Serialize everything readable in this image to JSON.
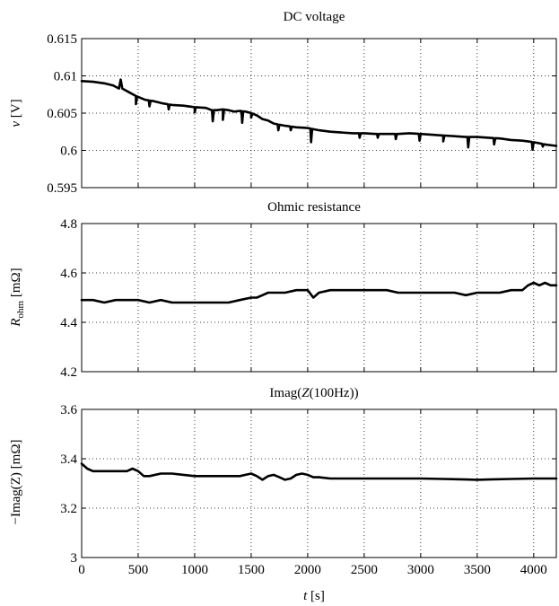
{
  "chart_data": [
    {
      "type": "line",
      "title": "DC voltage",
      "ylabel_main": "v",
      "ylabel_unit": " [V]",
      "xlim": [
        0,
        4200
      ],
      "ylim": [
        0.595,
        0.615
      ],
      "xticks": [
        0,
        500,
        1000,
        1500,
        2000,
        2500,
        3000,
        3500,
        4000
      ],
      "yticks": [
        0.595,
        0.6,
        0.605,
        0.61,
        0.615
      ],
      "ytick_labels": [
        "0.595",
        "0.6",
        "0.605",
        "0.61",
        "0.615"
      ],
      "grid": true,
      "series": [
        {
          "x": [
            0,
            100,
            200,
            280,
            330,
            345,
            360,
            420,
            480,
            560,
            640,
            720,
            800,
            900,
            1000,
            1100,
            1150,
            1200,
            1250,
            1300,
            1350,
            1400,
            1450,
            1500,
            1550,
            1600,
            1650,
            1700,
            1800,
            1900,
            2000,
            2100,
            2200,
            2300,
            2400,
            2500,
            2600,
            2700,
            2800,
            2900,
            3000,
            3100,
            3200,
            3300,
            3400,
            3500,
            3600,
            3700,
            3800,
            3900,
            4000,
            4100,
            4200
          ],
          "y": [
            0.6093,
            0.6092,
            0.609,
            0.6087,
            0.6083,
            0.6095,
            0.6083,
            0.6078,
            0.6073,
            0.6068,
            0.6066,
            0.6063,
            0.6061,
            0.606,
            0.6058,
            0.6057,
            0.6054,
            0.6054,
            0.6055,
            0.6054,
            0.6052,
            0.6053,
            0.6052,
            0.605,
            0.6047,
            0.6042,
            0.604,
            0.6036,
            0.6033,
            0.6031,
            0.603,
            0.6027,
            0.6025,
            0.6024,
            0.6023,
            0.6023,
            0.6022,
            0.6022,
            0.6022,
            0.6023,
            0.6022,
            0.6021,
            0.602,
            0.6019,
            0.6018,
            0.6018,
            0.6017,
            0.6016,
            0.6014,
            0.6013,
            0.6011,
            0.6008,
            0.6006
          ],
          "spikes": [
            {
              "x": 480,
              "y": 0.6062
            },
            {
              "x": 600,
              "y": 0.6059
            },
            {
              "x": 770,
              "y": 0.6055
            },
            {
              "x": 1000,
              "y": 0.6051
            },
            {
              "x": 1160,
              "y": 0.6039
            },
            {
              "x": 1250,
              "y": 0.6041
            },
            {
              "x": 1420,
              "y": 0.6037
            },
            {
              "x": 1500,
              "y": 0.6044
            },
            {
              "x": 1740,
              "y": 0.6027
            },
            {
              "x": 1850,
              "y": 0.6027
            },
            {
              "x": 2030,
              "y": 0.6011
            },
            {
              "x": 2460,
              "y": 0.6017
            },
            {
              "x": 2620,
              "y": 0.6017
            },
            {
              "x": 2780,
              "y": 0.6015
            },
            {
              "x": 2990,
              "y": 0.6013
            },
            {
              "x": 3200,
              "y": 0.6012
            },
            {
              "x": 3420,
              "y": 0.6004
            },
            {
              "x": 3650,
              "y": 0.6008
            },
            {
              "x": 3990,
              "y": 0.6001
            },
            {
              "x": 4080,
              "y": 0.6005
            }
          ]
        }
      ]
    },
    {
      "type": "line",
      "title": "Ohmic resistance",
      "ylabel_main": "R",
      "ylabel_sub": "ohm",
      "ylabel_unit": " [mΩ]",
      "xlim": [
        0,
        4200
      ],
      "ylim": [
        4.2,
        4.8
      ],
      "xticks": [
        0,
        500,
        1000,
        1500,
        2000,
        2500,
        3000,
        3500,
        4000
      ],
      "yticks": [
        4.2,
        4.4,
        4.6,
        4.8
      ],
      "ytick_labels": [
        "4.2",
        "4.4",
        "4.6",
        "4.8"
      ],
      "grid": true,
      "series": [
        {
          "x": [
            0,
            100,
            200,
            300,
            400,
            500,
            600,
            700,
            800,
            900,
            1000,
            1100,
            1200,
            1300,
            1400,
            1500,
            1550,
            1600,
            1650,
            1700,
            1750,
            1800,
            1900,
            2000,
            2050,
            2100,
            2200,
            2300,
            2400,
            2500,
            2600,
            2700,
            2800,
            2900,
            3000,
            3100,
            3200,
            3300,
            3400,
            3500,
            3600,
            3700,
            3800,
            3900,
            3950,
            4000,
            4050,
            4100,
            4150,
            4200
          ],
          "y": [
            4.49,
            4.49,
            4.48,
            4.49,
            4.49,
            4.49,
            4.48,
            4.49,
            4.48,
            4.48,
            4.48,
            4.48,
            4.48,
            4.48,
            4.49,
            4.5,
            4.5,
            4.51,
            4.52,
            4.52,
            4.52,
            4.52,
            4.53,
            4.53,
            4.5,
            4.52,
            4.53,
            4.53,
            4.53,
            4.53,
            4.53,
            4.53,
            4.52,
            4.52,
            4.52,
            4.52,
            4.52,
            4.52,
            4.51,
            4.52,
            4.52,
            4.52,
            4.53,
            4.53,
            4.55,
            4.56,
            4.55,
            4.56,
            4.55,
            4.55
          ]
        }
      ]
    },
    {
      "type": "line",
      "title_pre": "Imag(",
      "title_ital": "Z",
      "title_post": "(100Hz))",
      "ylabel_main": "−Imag(Z) [mΩ]",
      "xlabel_main": "t",
      "xlabel_unit": " [s]",
      "xlim": [
        0,
        4200
      ],
      "ylim": [
        3.0,
        3.6
      ],
      "xticks": [
        0,
        500,
        1000,
        1500,
        2000,
        2500,
        3000,
        3500,
        4000
      ],
      "xtick_labels": [
        "0",
        "500",
        "1000",
        "1500",
        "2000",
        "2500",
        "3000",
        "3500",
        "4000"
      ],
      "yticks": [
        3.0,
        3.2,
        3.4,
        3.6
      ],
      "ytick_labels": [
        "3",
        "3.2",
        "3.4",
        "3.6"
      ],
      "grid": true,
      "series": [
        {
          "x": [
            0,
            50,
            100,
            200,
            300,
            400,
            450,
            500,
            550,
            600,
            700,
            800,
            900,
            1000,
            1200,
            1400,
            1450,
            1500,
            1550,
            1600,
            1650,
            1700,
            1750,
            1800,
            1850,
            1900,
            1950,
            2000,
            2050,
            2100,
            2200,
            2400,
            2600,
            2800,
            3000,
            3200,
            3400,
            3500,
            3600,
            3800,
            4000,
            4200
          ],
          "y": [
            3.38,
            3.36,
            3.35,
            3.35,
            3.35,
            3.35,
            3.36,
            3.35,
            3.33,
            3.33,
            3.34,
            3.34,
            3.335,
            3.33,
            3.33,
            3.33,
            3.335,
            3.34,
            3.33,
            3.315,
            3.33,
            3.335,
            3.325,
            3.315,
            3.32,
            3.335,
            3.34,
            3.335,
            3.325,
            3.325,
            3.32,
            3.32,
            3.32,
            3.32,
            3.32,
            3.318,
            3.316,
            3.315,
            3.316,
            3.318,
            3.32,
            3.32
          ]
        }
      ]
    }
  ]
}
